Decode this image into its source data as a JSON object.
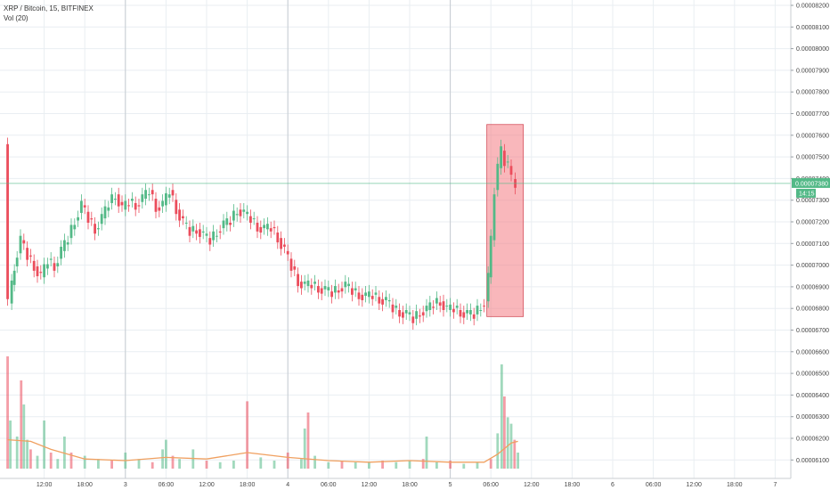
{
  "legend": {
    "symbol": "XRP / Bitcoin, 15, BITFINEX",
    "volume": "Vol (20)"
  },
  "chart_data": {
    "type": "candlestick",
    "y_ticks": [
      "0.00008200",
      "0.00008100",
      "0.00008000",
      "0.00007900",
      "0.00007800",
      "0.00007700",
      "0.00007600",
      "0.00007500",
      "0.00007400",
      "0.00007300",
      "0.00007200",
      "0.00007100",
      "0.00007000",
      "0.00006900",
      "0.00006800",
      "0.00006700",
      "0.00006600",
      "0.00006500",
      "0.00006400",
      "0.00006300",
      "0.00006200",
      "0.00006100"
    ],
    "x_ticks": [
      {
        "label": "12:00",
        "hour": 12
      },
      {
        "label": "18:00",
        "hour": 18
      },
      {
        "label": "3",
        "hour": 24
      },
      {
        "label": "06:00",
        "hour": 30
      },
      {
        "label": "12:00",
        "hour": 36
      },
      {
        "label": "18:00",
        "hour": 42
      },
      {
        "label": "4",
        "hour": 48
      },
      {
        "label": "06:00",
        "hour": 54
      },
      {
        "label": "12:00",
        "hour": 60
      },
      {
        "label": "18:00",
        "hour": 66
      },
      {
        "label": "5",
        "hour": 72
      },
      {
        "label": "06:00",
        "hour": 78
      },
      {
        "label": "12:00",
        "hour": 84
      },
      {
        "label": "18:00",
        "hour": 90
      },
      {
        "label": "6",
        "hour": 96
      },
      {
        "label": "06:00",
        "hour": 102
      },
      {
        "label": "12:00",
        "hour": 108
      },
      {
        "label": "18:00",
        "hour": 114
      },
      {
        "label": "7",
        "hour": 120
      }
    ],
    "current_price": "0.00007380",
    "countdown": "14:15",
    "current_price_value": 7.38e-05,
    "price_points": [
      [
        6.6,
        7.56e-05
      ],
      [
        7.2,
        6.83e-05
      ],
      [
        8,
        7e-05
      ],
      [
        9,
        7.12e-05
      ],
      [
        10,
        7.05e-05
      ],
      [
        11,
        7e-05
      ],
      [
        12,
        6.95e-05
      ],
      [
        13,
        7.03e-05
      ],
      [
        14,
        7e-05
      ],
      [
        15,
        7.07e-05
      ],
      [
        16,
        7.13e-05
      ],
      [
        17,
        7.21e-05
      ],
      [
        18,
        7.28e-05
      ],
      [
        19,
        7.22e-05
      ],
      [
        20,
        7.17e-05
      ],
      [
        21,
        7.22e-05
      ],
      [
        22,
        7.29e-05
      ],
      [
        23,
        7.33e-05
      ],
      [
        24,
        7.26e-05
      ],
      [
        25,
        7.3e-05
      ],
      [
        26,
        7.28e-05
      ],
      [
        27,
        7.31e-05
      ],
      [
        28,
        7.35e-05
      ],
      [
        29,
        7.27e-05
      ],
      [
        30,
        7.28e-05
      ],
      [
        31,
        7.35e-05
      ],
      [
        32,
        7.26e-05
      ],
      [
        33,
        7.2e-05
      ],
      [
        34,
        7.16e-05
      ],
      [
        35,
        7.17e-05
      ],
      [
        36,
        7.14e-05
      ],
      [
        37,
        7.12e-05
      ],
      [
        38,
        7.16e-05
      ],
      [
        39,
        7.19e-05
      ],
      [
        40,
        7.21e-05
      ],
      [
        41,
        7.26e-05
      ],
      [
        42,
        7.24e-05
      ],
      [
        43,
        7.22e-05
      ],
      [
        44,
        7.18e-05
      ],
      [
        45,
        7.17e-05
      ],
      [
        46,
        7.18e-05
      ],
      [
        47,
        7.13e-05
      ],
      [
        48,
        7.07e-05
      ],
      [
        49,
        7e-05
      ],
      [
        50,
        6.93e-05
      ],
      [
        51,
        6.91e-05
      ],
      [
        52,
        6.92e-05
      ],
      [
        53,
        6.9e-05
      ],
      [
        54,
        6.89e-05
      ],
      [
        55,
        6.88e-05
      ],
      [
        56,
        6.9e-05
      ],
      [
        57,
        6.91e-05
      ],
      [
        58,
        6.89e-05
      ],
      [
        59,
        6.87e-05
      ],
      [
        60,
        6.86e-05
      ],
      [
        61,
        6.87e-05
      ],
      [
        62,
        6.85e-05
      ],
      [
        63,
        6.84e-05
      ],
      [
        64,
        6.81e-05
      ],
      [
        65,
        6.79e-05
      ],
      [
        66,
        6.78e-05
      ],
      [
        67,
        6.76e-05
      ],
      [
        68,
        6.79e-05
      ],
      [
        69,
        6.8e-05
      ],
      [
        70,
        6.83e-05
      ],
      [
        71,
        6.84e-05
      ],
      [
        72,
        6.8e-05
      ],
      [
        73,
        6.81e-05
      ],
      [
        74,
        6.79e-05
      ],
      [
        75,
        6.78e-05
      ],
      [
        76,
        6.78e-05
      ],
      [
        77,
        6.82e-05
      ],
      [
        77.6,
        6.84e-05
      ],
      [
        78,
        6.95e-05
      ],
      [
        78.5,
        7.12e-05
      ],
      [
        79,
        7.35e-05
      ],
      [
        79.5,
        7.45e-05
      ],
      [
        80,
        7.53e-05
      ],
      [
        80.5,
        7.48e-05
      ],
      [
        81,
        7.46e-05
      ],
      [
        81.6,
        7.4e-05
      ],
      [
        82,
        7.38e-05
      ]
    ],
    "volume_points": [
      [
        6.6,
        0.7
      ],
      [
        7,
        0.3
      ],
      [
        8,
        0.2
      ],
      [
        8.6,
        0.55
      ],
      [
        9,
        0.4
      ],
      [
        9.5,
        0.18
      ],
      [
        10,
        0.12
      ],
      [
        11,
        0.08
      ],
      [
        12,
        0.3
      ],
      [
        13,
        0.1
      ],
      [
        14,
        0.06
      ],
      [
        15,
        0.2
      ],
      [
        16,
        0.1
      ],
      [
        18,
        0.08
      ],
      [
        20,
        0.06
      ],
      [
        22,
        0.05
      ],
      [
        24,
        0.1
      ],
      [
        26,
        0.06
      ],
      [
        28,
        0.04
      ],
      [
        29.5,
        0.12
      ],
      [
        30,
        0.18
      ],
      [
        31,
        0.08
      ],
      [
        32,
        0.06
      ],
      [
        34,
        0.12
      ],
      [
        36,
        0.05
      ],
      [
        38,
        0.04
      ],
      [
        40,
        0.05
      ],
      [
        42,
        0.42
      ],
      [
        44,
        0.07
      ],
      [
        46,
        0.05
      ],
      [
        48,
        0.1
      ],
      [
        50,
        0.06
      ],
      [
        50.5,
        0.25
      ],
      [
        51,
        0.35
      ],
      [
        52,
        0.08
      ],
      [
        54,
        0.04
      ],
      [
        56,
        0.05
      ],
      [
        58,
        0.04
      ],
      [
        60,
        0.04
      ],
      [
        62,
        0.05
      ],
      [
        64,
        0.04
      ],
      [
        66,
        0.05
      ],
      [
        68,
        0.06
      ],
      [
        68.5,
        0.2
      ],
      [
        70,
        0.04
      ],
      [
        72,
        0.05
      ],
      [
        74,
        0.03
      ],
      [
        76,
        0.04
      ],
      [
        78,
        0.06
      ],
      [
        79,
        0.22
      ],
      [
        79.6,
        0.65
      ],
      [
        80,
        0.45
      ],
      [
        80.5,
        0.32
      ],
      [
        81,
        0.28
      ],
      [
        81.5,
        0.18
      ],
      [
        82,
        0.1
      ]
    ],
    "volume_ma": [
      [
        6.6,
        0.18
      ],
      [
        10,
        0.17
      ],
      [
        13,
        0.12
      ],
      [
        18,
        0.06
      ],
      [
        24,
        0.05
      ],
      [
        30,
        0.07
      ],
      [
        36,
        0.06
      ],
      [
        42,
        0.1
      ],
      [
        48,
        0.07
      ],
      [
        54,
        0.05
      ],
      [
        60,
        0.04
      ],
      [
        66,
        0.05
      ],
      [
        72,
        0.04
      ],
      [
        77,
        0.04
      ],
      [
        79,
        0.09
      ],
      [
        81,
        0.16
      ],
      [
        82,
        0.17
      ]
    ],
    "highlight": {
      "from_hour": 77.4,
      "to_hour": 82.8,
      "from_price": 6.77e-05,
      "to_price": 7.65e-05
    },
    "colors": {
      "up": "#53b987",
      "down": "#eb4d5c",
      "ma": "#f0a060",
      "grid": "#e9eef2",
      "highlight": "#f47b83"
    }
  }
}
